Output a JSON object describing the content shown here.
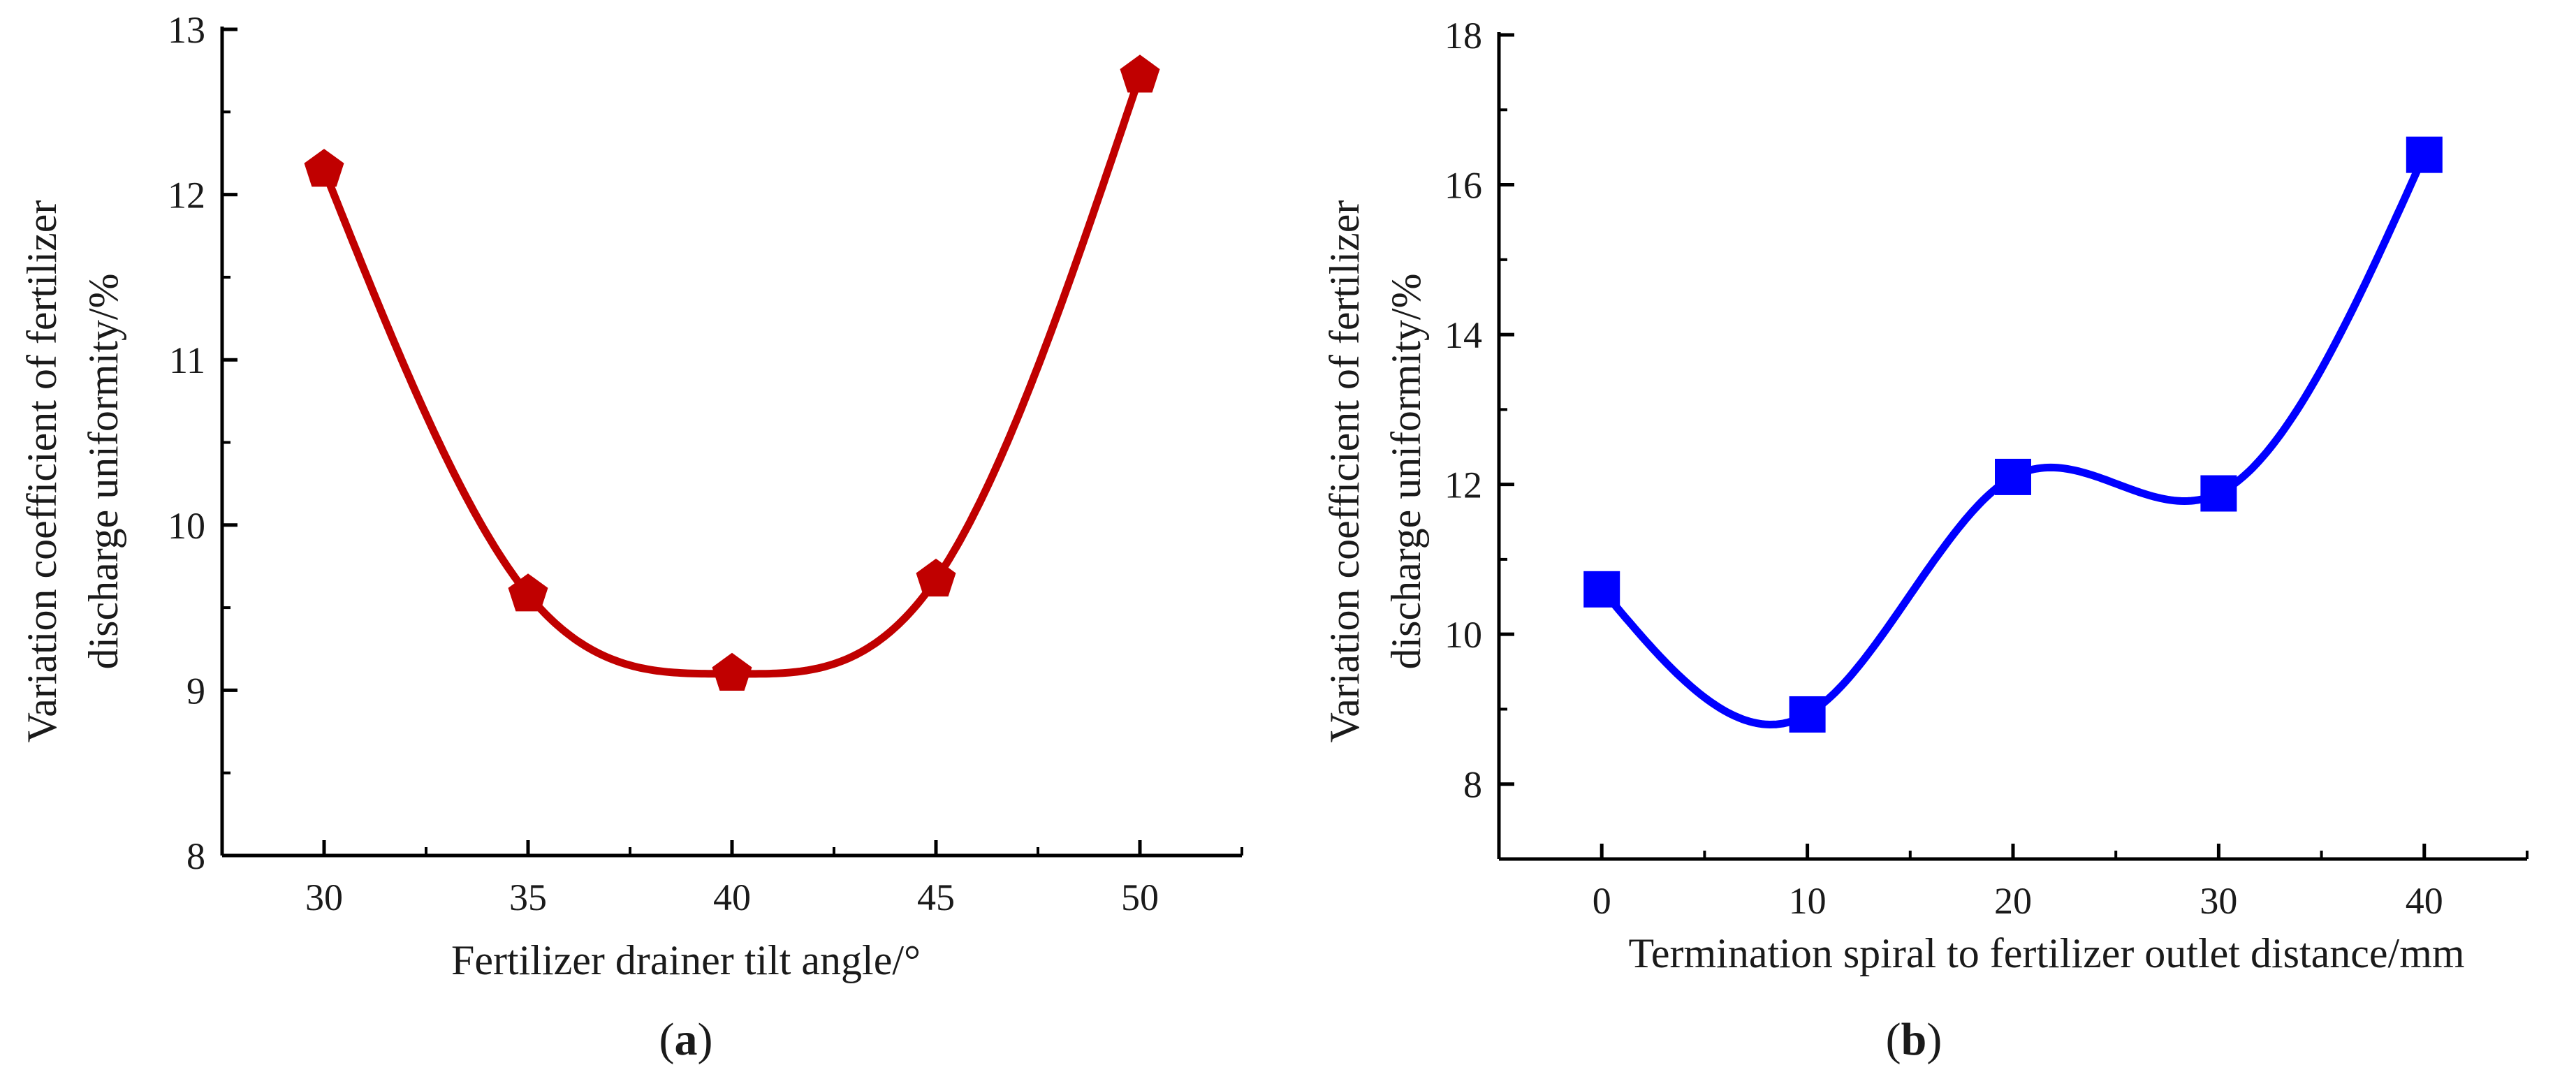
{
  "chart_data": [
    {
      "type": "line",
      "panel_label": "a",
      "xlabel": "Fertilizer drainer tilt angle/°",
      "ylabel_lines": [
        "Variation coefficient  of fertilizer",
        "discharge uniformity/%"
      ],
      "x": [
        30,
        35,
        40,
        45,
        50
      ],
      "y": [
        12.15,
        9.58,
        9.1,
        9.67,
        12.72
      ],
      "xlim": [
        27.5,
        52.5
      ],
      "ylim": [
        8,
        13
      ],
      "xticks": [
        30,
        35,
        40,
        45,
        50
      ],
      "yticks": [
        8,
        9,
        10,
        11,
        12,
        13
      ],
      "color": "#c00000",
      "marker": "pentagon",
      "smooth": true
    },
    {
      "type": "line",
      "panel_label": "b",
      "xlabel": "Termination spiral to fertilizer outlet distance/mm",
      "ylabel_lines": [
        "Variation coefficient  of fertilizer",
        "discharge uniformity/%"
      ],
      "x": [
        0,
        10,
        20,
        30,
        40
      ],
      "y": [
        10.6,
        8.93,
        12.1,
        11.88,
        16.4
      ],
      "xlim": [
        -5,
        45
      ],
      "ylim": [
        7,
        18
      ],
      "xticks": [
        0,
        10,
        20,
        30,
        40
      ],
      "yticks": [
        8,
        10,
        12,
        14,
        16,
        18
      ],
      "color": "#0000ff",
      "marker": "square",
      "smooth": true
    }
  ]
}
